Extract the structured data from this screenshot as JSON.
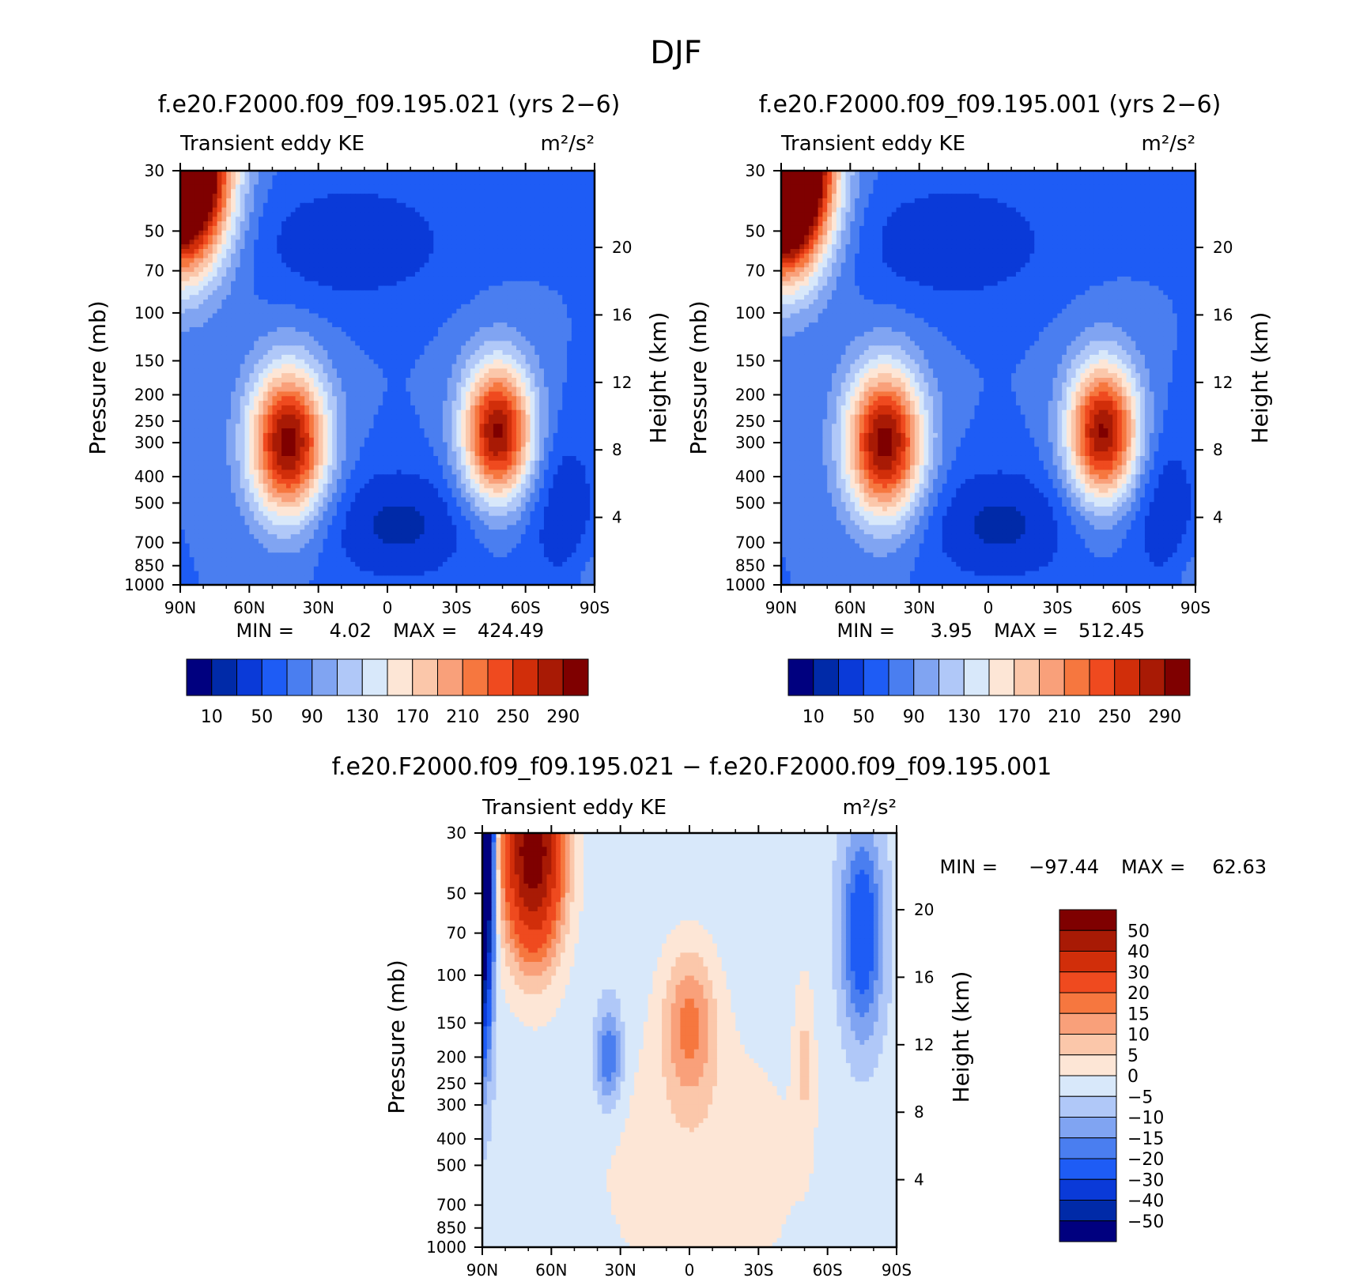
{
  "figure_title": "DJF",
  "chart_data": [
    {
      "id": "panel_021",
      "type": "contour",
      "title": "f.e20.F2000.f09_f09.195.021 (yrs 2−6)",
      "left_subtitle": "Transient eddy KE",
      "right_subtitle": "m²/s²",
      "ylabel": "Pressure (mb)",
      "ylabel_right": "Height (km)",
      "x_ticks": [
        "90N",
        "60N",
        "30N",
        "0",
        "30S",
        "60S",
        "90S"
      ],
      "xlim": [
        90,
        -90
      ],
      "y_ticks": [
        30,
        50,
        70,
        100,
        150,
        200,
        250,
        300,
        400,
        500,
        700,
        850,
        1000
      ],
      "ylim": [
        1000,
        30
      ],
      "y_right_ticks": [
        20,
        16,
        12,
        8,
        4
      ],
      "min_label": "MIN =",
      "min_value": "4.02",
      "max_label": "MAX =",
      "max_value": "424.49",
      "colorbar_labels": [
        "10",
        "50",
        "90",
        "130",
        "170",
        "210",
        "250",
        "290"
      ],
      "levels": [
        10,
        30,
        50,
        70,
        90,
        110,
        130,
        150,
        170,
        190,
        210,
        230,
        250,
        270,
        290
      ],
      "colors": [
        "#00007f",
        "#002aa8",
        "#0a3ad8",
        "#1e5cf5",
        "#4a7ef0",
        "#80a4f2",
        "#b0c8f8",
        "#d8e8fa",
        "#fde6d6",
        "#fbc7aa",
        "#f9a07a",
        "#f6773f",
        "#ef4a1f",
        "#d12e0a",
        "#a81a05",
        "#7f0000"
      ],
      "features": [
        {
          "type": "low_band",
          "lat": -10,
          "p": 550
        },
        {
          "type": "low_band",
          "lat": 10,
          "p": 60
        },
        {
          "type": "jet",
          "lat": 43,
          "p": 300,
          "peak": 300
        },
        {
          "type": "jet",
          "lat": -48,
          "p": 275,
          "peak": 300
        },
        {
          "type": "polar_vortex",
          "lat": 90,
          "p": 30,
          "peak": 420
        }
      ]
    },
    {
      "id": "panel_001",
      "type": "contour",
      "title": "f.e20.F2000.f09_f09.195.001 (yrs 2−6)",
      "left_subtitle": "Transient eddy KE",
      "right_subtitle": "m²/s²",
      "ylabel": "Pressure (mb)",
      "ylabel_right": "Height (km)",
      "x_ticks": [
        "90N",
        "60N",
        "30N",
        "0",
        "30S",
        "60S",
        "90S"
      ],
      "xlim": [
        90,
        -90
      ],
      "y_ticks": [
        30,
        50,
        70,
        100,
        150,
        200,
        250,
        300,
        400,
        500,
        700,
        850,
        1000
      ],
      "ylim": [
        1000,
        30
      ],
      "y_right_ticks": [
        20,
        16,
        12,
        8,
        4
      ],
      "min_label": "MIN =",
      "min_value": "3.95",
      "max_label": "MAX =",
      "max_value": "512.45",
      "colorbar_labels": [
        "10",
        "50",
        "90",
        "130",
        "170",
        "210",
        "250",
        "290"
      ],
      "levels": [
        10,
        30,
        50,
        70,
        90,
        110,
        130,
        150,
        170,
        190,
        210,
        230,
        250,
        270,
        290
      ],
      "colors": [
        "#00007f",
        "#002aa8",
        "#0a3ad8",
        "#1e5cf5",
        "#4a7ef0",
        "#80a4f2",
        "#b0c8f8",
        "#d8e8fa",
        "#fde6d6",
        "#fbc7aa",
        "#f9a07a",
        "#f6773f",
        "#ef4a1f",
        "#d12e0a",
        "#a81a05",
        "#7f0000"
      ],
      "features": [
        {
          "type": "low_band",
          "lat": -10,
          "p": 550
        },
        {
          "type": "low_band",
          "lat": 10,
          "p": 60
        },
        {
          "type": "jet",
          "lat": 45,
          "p": 300,
          "peak": 300
        },
        {
          "type": "jet",
          "lat": -50,
          "p": 275,
          "peak": 290
        },
        {
          "type": "polar_vortex",
          "lat": 90,
          "p": 30,
          "peak": 510
        }
      ]
    },
    {
      "id": "panel_diff",
      "type": "contour",
      "title": "f.e20.F2000.f09_f09.195.021 − f.e20.F2000.f09_f09.195.001",
      "left_subtitle": "Transient eddy KE",
      "right_subtitle": "m²/s²",
      "ylabel": "Pressure (mb)",
      "ylabel_right": "Height (km)",
      "x_ticks": [
        "90N",
        "60N",
        "30N",
        "0",
        "30S",
        "60S",
        "90S"
      ],
      "xlim": [
        90,
        -90
      ],
      "y_ticks": [
        30,
        50,
        70,
        100,
        150,
        200,
        250,
        300,
        400,
        500,
        700,
        850,
        1000
      ],
      "ylim": [
        1000,
        30
      ],
      "y_right_ticks": [
        20,
        16,
        12,
        8,
        4
      ],
      "min_label": "MIN =",
      "min_value": "−97.44",
      "max_label": "MAX =",
      "max_value": "62.63",
      "colorbar_labels": [
        "50",
        "40",
        "30",
        "20",
        "15",
        "10",
        "5",
        "0",
        "−5",
        "−10",
        "−15",
        "−20",
        "−30",
        "−40",
        "−50"
      ],
      "levels": [
        -50,
        -40,
        -30,
        -20,
        -15,
        -10,
        -5,
        0,
        5,
        10,
        15,
        20,
        30,
        40,
        50
      ],
      "colors": [
        "#00007f",
        "#002aa8",
        "#0a3ad8",
        "#1e5cf5",
        "#4a7ef0",
        "#80a4f2",
        "#b0c8f8",
        "#d8e8fa",
        "#fde6d6",
        "#fbc7aa",
        "#f9a07a",
        "#f6773f",
        "#ef4a1f",
        "#d12e0a",
        "#a81a05",
        "#7f0000"
      ],
      "features": [
        {
          "type": "nh_high_lat_positive",
          "lat": 65,
          "p": 40,
          "peak": 60
        },
        {
          "type": "pole_negative",
          "lat": 90,
          "p": 30,
          "peak": -97
        },
        {
          "type": "equatorial_positive",
          "lat": 0,
          "p": 150,
          "peak": 18
        },
        {
          "type": "sh_high_lat_negative",
          "lat": -75,
          "p": 60,
          "peak": -25
        }
      ]
    }
  ]
}
